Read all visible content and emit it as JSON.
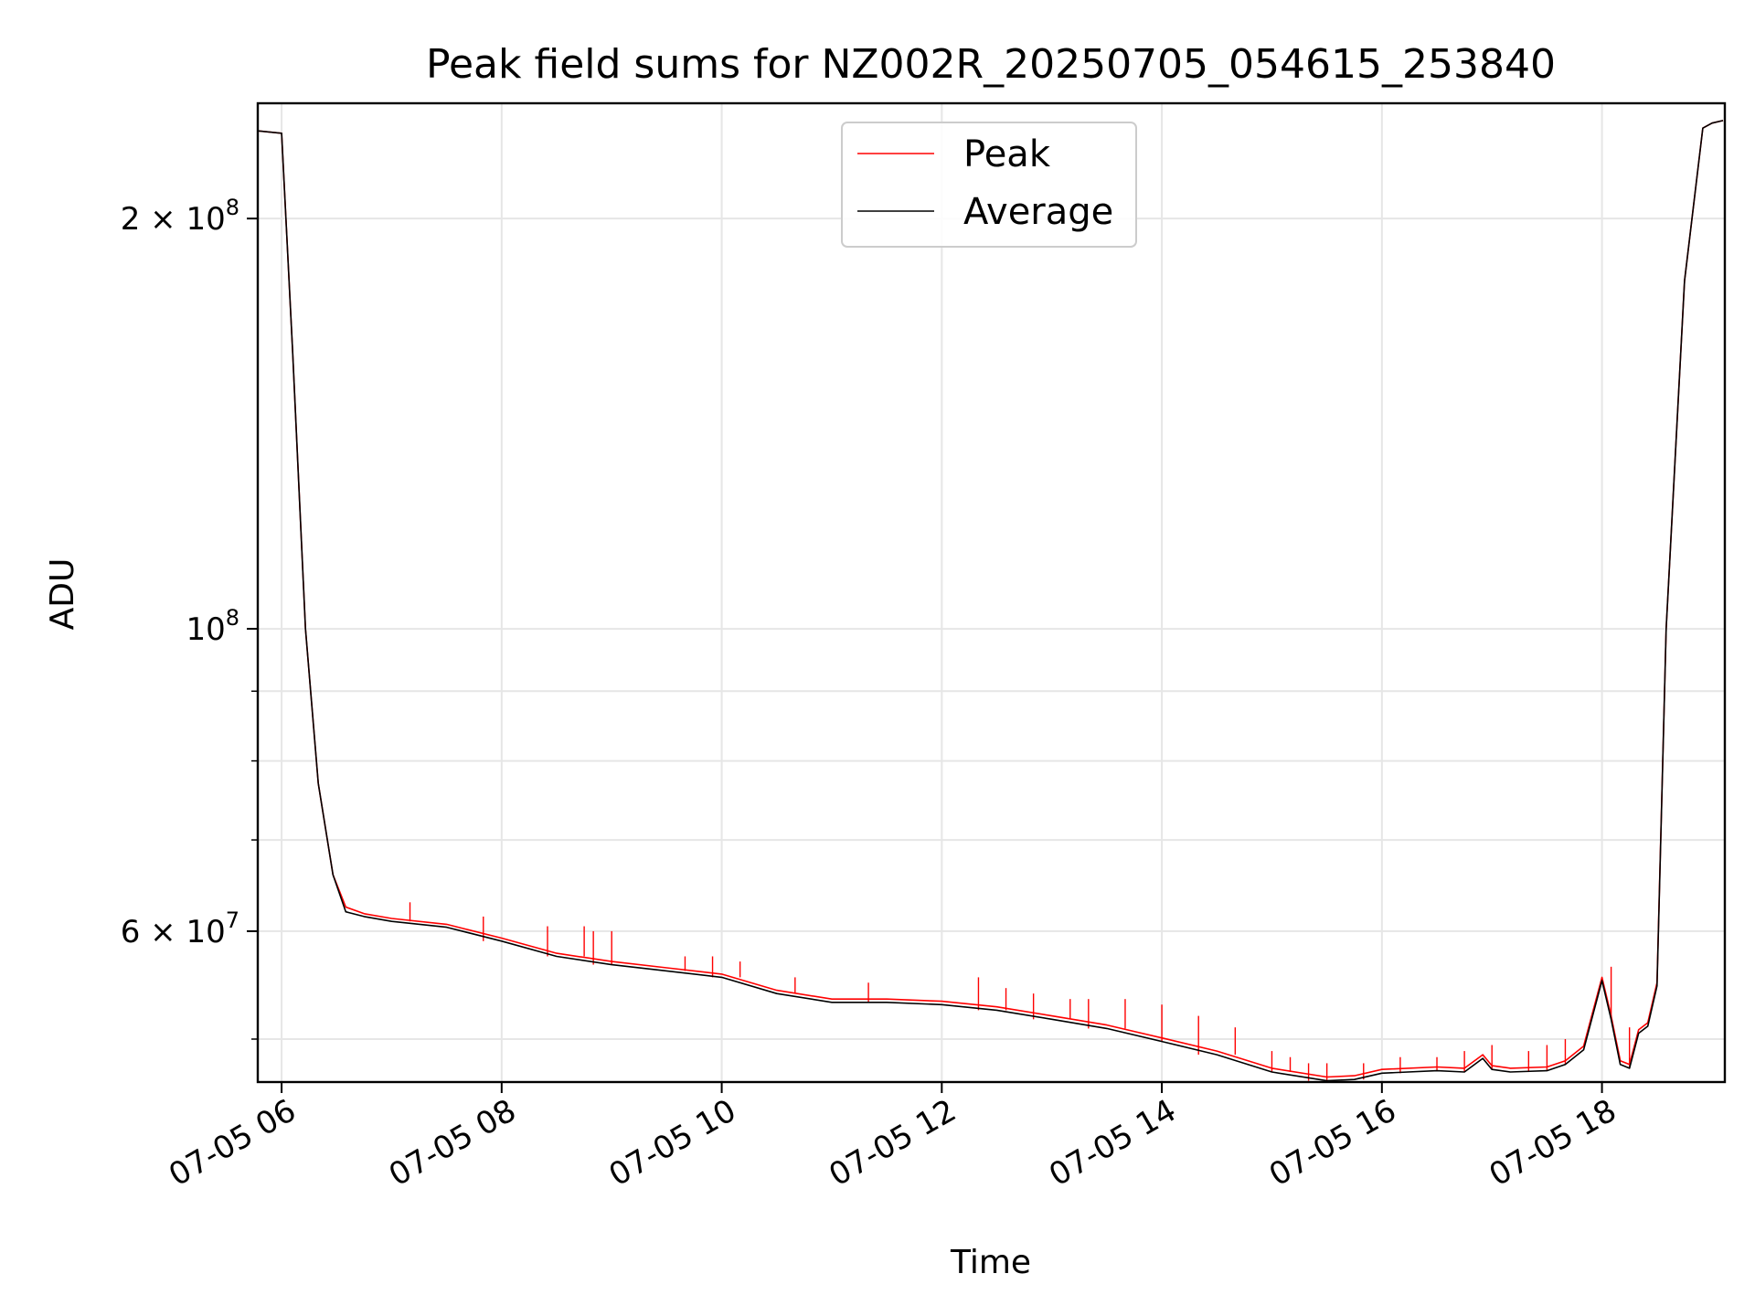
{
  "chart_data": {
    "type": "line",
    "title": "Peak field sums for NZ002R_20250705_054615_253840",
    "xlabel": "Time",
    "ylabel": "ADU",
    "y_scale": "log",
    "grid": true,
    "legend_position": "upper center",
    "xlim": [
      "07-05 05:47",
      "07-05 19:07"
    ],
    "ylim": [
      46500000,
      243000000
    ],
    "x_ticks": [
      "07-05 06",
      "07-05 08",
      "07-05 10",
      "07-05 12",
      "07-05 14",
      "07-05 16",
      "07-05 18"
    ],
    "x_tick_values": [
      "07-05 06:00",
      "07-05 08:00",
      "07-05 10:00",
      "07-05 12:00",
      "07-05 14:00",
      "07-05 16:00",
      "07-05 18:00"
    ],
    "y_ticks": [
      {
        "value": 60000000,
        "label_base": "6 × 10",
        "label_exp": "7"
      },
      {
        "value": 100000000,
        "label_base": "10",
        "label_exp": "8"
      },
      {
        "value": 200000000,
        "label_base": "2 × 10",
        "label_exp": "8"
      }
    ],
    "y_minor_ticks": [
      50000000,
      70000000,
      80000000,
      90000000
    ],
    "series": [
      {
        "name": "Peak",
        "color": "#ff0000",
        "x": [
          "07-05 05:46",
          "07-05 06:00",
          "07-05 06:06",
          "07-05 06:13",
          "07-05 06:20",
          "07-05 06:28",
          "07-05 06:35",
          "07-05 06:45",
          "07-05 07:00",
          "07-05 07:30",
          "07-05 08:00",
          "07-05 08:30",
          "07-05 09:00",
          "07-05 09:30",
          "07-05 10:00",
          "07-05 10:30",
          "07-05 11:00",
          "07-05 11:30",
          "07-05 12:00",
          "07-05 12:30",
          "07-05 13:00",
          "07-05 13:30",
          "07-05 14:00",
          "07-05 14:30",
          "07-05 15:00",
          "07-05 15:30",
          "07-05 15:45",
          "07-05 16:00",
          "07-05 16:30",
          "07-05 16:45",
          "07-05 16:55",
          "07-05 17:00",
          "07-05 17:10",
          "07-05 17:30",
          "07-05 17:40",
          "07-05 17:50",
          "07-05 18:00",
          "07-05 18:05",
          "07-05 18:10",
          "07-05 18:15",
          "07-05 18:20",
          "07-05 18:25",
          "07-05 18:30",
          "07-05 18:35",
          "07-05 18:45",
          "07-05 18:55",
          "07-05 19:00",
          "07-05 19:06"
        ],
        "y": [
          232000000,
          231000000,
          160000000,
          100000000,
          77000000,
          66000000,
          62500000,
          61800000,
          61300000,
          60700000,
          59300000,
          57800000,
          57000000,
          56400000,
          55800000,
          54300000,
          53500000,
          53500000,
          53300000,
          52800000,
          52000000,
          51200000,
          50100000,
          49000000,
          47600000,
          46900000,
          47000000,
          47500000,
          47700000,
          47600000,
          48700000,
          47800000,
          47600000,
          47700000,
          48200000,
          49400000,
          55500000,
          52000000,
          48200000,
          47900000,
          50800000,
          51400000,
          55000000,
          100000000,
          180000000,
          233000000,
          235000000,
          236000000
        ],
        "spikes": [
          [
            "07-05 07:10",
            63000000
          ],
          [
            "07-05 07:50",
            61500000
          ],
          [
            "07-05 08:25",
            60500000
          ],
          [
            "07-05 08:45",
            60500000
          ],
          [
            "07-05 08:50",
            60000000
          ],
          [
            "07-05 09:00",
            60000000
          ],
          [
            "07-05 09:40",
            57500000
          ],
          [
            "07-05 09:55",
            57500000
          ],
          [
            "07-05 10:10",
            57000000
          ],
          [
            "07-05 10:40",
            55500000
          ],
          [
            "07-05 11:20",
            55000000
          ],
          [
            "07-05 12:20",
            55500000
          ],
          [
            "07-05 12:35",
            54500000
          ],
          [
            "07-05 12:50",
            54000000
          ],
          [
            "07-05 13:10",
            53500000
          ],
          [
            "07-05 13:20",
            53500000
          ],
          [
            "07-05 13:40",
            53500000
          ],
          [
            "07-05 14:00",
            53000000
          ],
          [
            "07-05 14:20",
            52000000
          ],
          [
            "07-05 14:40",
            51000000
          ],
          [
            "07-05 15:00",
            49000000
          ],
          [
            "07-05 15:10",
            48500000
          ],
          [
            "07-05 15:20",
            48000000
          ],
          [
            "07-05 15:30",
            48000000
          ],
          [
            "07-05 15:50",
            48000000
          ],
          [
            "07-05 16:10",
            48500000
          ],
          [
            "07-05 16:30",
            48500000
          ],
          [
            "07-05 16:45",
            49000000
          ],
          [
            "07-05 17:00",
            49500000
          ],
          [
            "07-05 17:20",
            49000000
          ],
          [
            "07-05 17:30",
            49500000
          ],
          [
            "07-05 17:40",
            50000000
          ],
          [
            "07-05 18:05",
            56500000
          ],
          [
            "07-05 18:15",
            51000000
          ]
        ]
      },
      {
        "name": "Average",
        "color": "#000000",
        "x": [
          "07-05 05:46",
          "07-05 06:00",
          "07-05 06:06",
          "07-05 06:13",
          "07-05 06:20",
          "07-05 06:28",
          "07-05 06:35",
          "07-05 06:45",
          "07-05 07:00",
          "07-05 07:30",
          "07-05 08:00",
          "07-05 08:30",
          "07-05 09:00",
          "07-05 09:30",
          "07-05 10:00",
          "07-05 10:30",
          "07-05 11:00",
          "07-05 11:30",
          "07-05 12:00",
          "07-05 12:30",
          "07-05 13:00",
          "07-05 13:30",
          "07-05 14:00",
          "07-05 14:30",
          "07-05 15:00",
          "07-05 15:30",
          "07-05 15:45",
          "07-05 16:00",
          "07-05 16:30",
          "07-05 16:45",
          "07-05 16:55",
          "07-05 17:00",
          "07-05 17:10",
          "07-05 17:30",
          "07-05 17:40",
          "07-05 17:50",
          "07-05 18:00",
          "07-05 18:05",
          "07-05 18:10",
          "07-05 18:15",
          "07-05 18:20",
          "07-05 18:25",
          "07-05 18:30",
          "07-05 18:35",
          "07-05 18:45",
          "07-05 18:55",
          "07-05 19:00",
          "07-05 19:06"
        ],
        "y": [
          232000000,
          231000000,
          160000000,
          100000000,
          77000000,
          66000000,
          62000000,
          61500000,
          61000000,
          60400000,
          59000000,
          57500000,
          56700000,
          56100000,
          55500000,
          54000000,
          53200000,
          53200000,
          53000000,
          52500000,
          51700000,
          50900000,
          49800000,
          48700000,
          47300000,
          46600000,
          46700000,
          47200000,
          47400000,
          47300000,
          48400000,
          47500000,
          47300000,
          47400000,
          47900000,
          49100000,
          55200000,
          51700000,
          47900000,
          47600000,
          50500000,
          51100000,
          54700000,
          100000000,
          180000000,
          233000000,
          235000000,
          236000000
        ]
      }
    ]
  }
}
